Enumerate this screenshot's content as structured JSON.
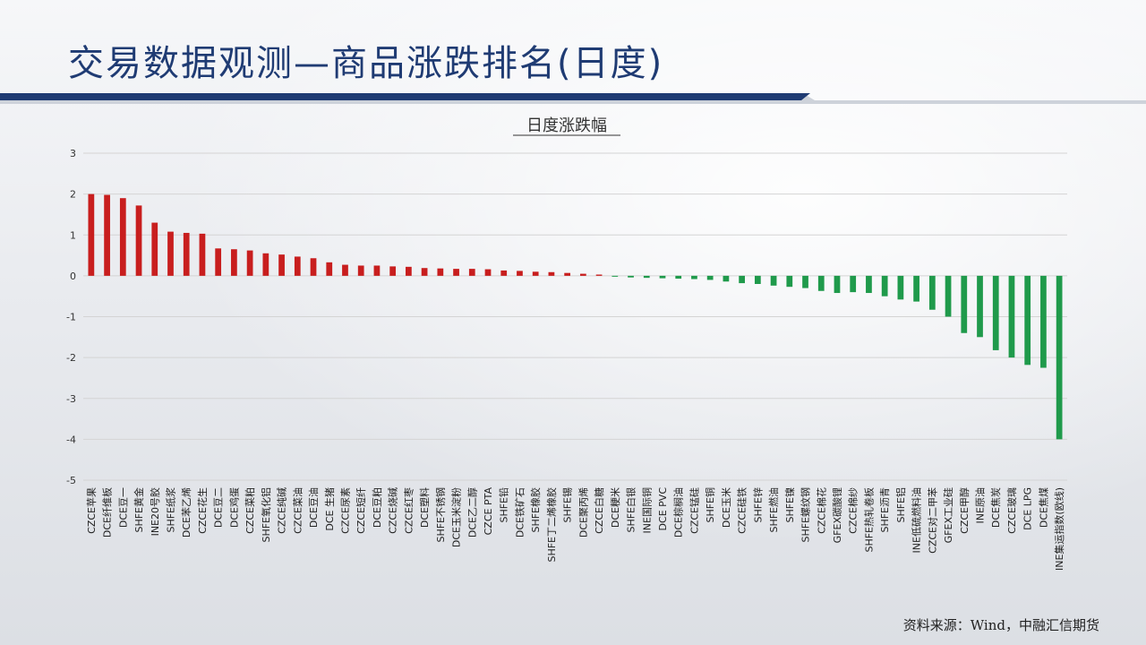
{
  "header": {
    "title": "交易数据观测—商品涨跌排名(日度)"
  },
  "footer": {
    "source": "资料来源：Wind，中融汇信期货"
  },
  "colors": {
    "up": "#c81e1e",
    "down": "#1f9a4b",
    "title": "#1f3b73",
    "band": "#1f3b73"
  },
  "chart_data": {
    "type": "bar",
    "title": "日度涨跌幅",
    "xlabel": "",
    "ylabel": "",
    "ylim": [
      -5,
      3
    ],
    "yticks": [
      3,
      2,
      1,
      0,
      -1,
      -2,
      -3,
      -4,
      -5
    ],
    "grid": true,
    "legend": "none",
    "categories": [
      "CZCE苹果",
      "DCE纤维板",
      "DCE豆一",
      "SHFE黄金",
      "INE20号胶",
      "SHFE纸浆",
      "DCE苯乙烯",
      "CZCE花生",
      "DCE豆二",
      "DCE鸡蛋",
      "CZCE菜粕",
      "SHFE氧化铝",
      "CZCE纯碱",
      "CZCE菜油",
      "DCE豆油",
      "DCE 生猪",
      "CZCE尿素",
      "CZCE短纤",
      "DCE豆粕",
      "CZCE烧碱",
      "CZCE红枣",
      "DCE塑料",
      "SHFE不锈钢",
      "DCE玉米淀粉",
      "DCE乙二醇",
      "CZCE PTA",
      "SHFE铅",
      "DCE铁矿石",
      "SHFE橡胶",
      "SHFE丁二烯橡胶",
      "SHFE锡",
      "DCE聚丙烯",
      "CZCE白糖",
      "DCE粳米",
      "SHFE白银",
      "INE国际铜",
      "DCE PVC",
      "DCE棕榈油",
      "CZCE锰硅",
      "SHFE铜",
      "DCE玉米",
      "CZCE硅铁",
      "SHFE锌",
      "SHFE燃油",
      "SHFE镍",
      "SHFE螺纹钢",
      "CZCE棉花",
      "GFEX碳酸锂",
      "CZCE棉纱",
      "SHFE热轧卷板",
      "SHFE沥青",
      "SHFE铝",
      "INE低硫燃料油",
      "CZCE对二甲苯",
      "GFEX工业硅",
      "CZCE甲醇",
      "INE原油",
      "DCE焦炭",
      "CZCE玻璃",
      "DCE LPG",
      "DCE焦煤",
      "INE集运指数(欧线)"
    ],
    "values": [
      2.0,
      1.98,
      1.9,
      1.72,
      1.3,
      1.08,
      1.05,
      1.03,
      0.67,
      0.65,
      0.62,
      0.55,
      0.52,
      0.47,
      0.43,
      0.33,
      0.27,
      0.25,
      0.25,
      0.23,
      0.22,
      0.19,
      0.18,
      0.17,
      0.17,
      0.16,
      0.13,
      0.12,
      0.1,
      0.09,
      0.07,
      0.05,
      0.03,
      -0.02,
      -0.04,
      -0.05,
      -0.06,
      -0.07,
      -0.08,
      -0.1,
      -0.14,
      -0.18,
      -0.2,
      -0.24,
      -0.27,
      -0.3,
      -0.37,
      -0.42,
      -0.4,
      -0.42,
      -0.5,
      -0.58,
      -0.63,
      -0.83,
      -1.0,
      -1.4,
      -1.5,
      -1.82,
      -2.0,
      -2.18,
      -2.25,
      -4.0
    ]
  }
}
